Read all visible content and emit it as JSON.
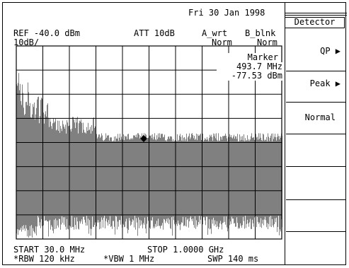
{
  "header": {
    "date": "Fri 30 Jan 1998",
    "ref_level": "REF -40.0 dBm",
    "scale": "10dB/",
    "attenuation": "ATT 10dB",
    "trace_a": "A_wrt",
    "trace_a_mode": "Norm",
    "trace_b": "B_blnk",
    "trace_b_mode": "Norm"
  },
  "marker": {
    "label": "Marker",
    "frequency": "493.7 MHz",
    "level": "-77.53 dBm"
  },
  "footer": {
    "start": "START 30.0 MHz",
    "stop": "STOP 1.0000 GHz",
    "rbw": "*RBW 120 kHz",
    "vbw": "*VBW 1 MHz",
    "sweep": "SWP 140 ms"
  },
  "softkeys": {
    "title": "Detector",
    "items": [
      {
        "label": "QP ▶"
      },
      {
        "label": "Peak ▶"
      },
      {
        "label": "Normal"
      },
      {
        "label": ""
      },
      {
        "label": ""
      },
      {
        "label": ""
      }
    ]
  },
  "colors": {
    "trace": "#808080",
    "grid": "#000000",
    "background": "#ffffff"
  }
}
